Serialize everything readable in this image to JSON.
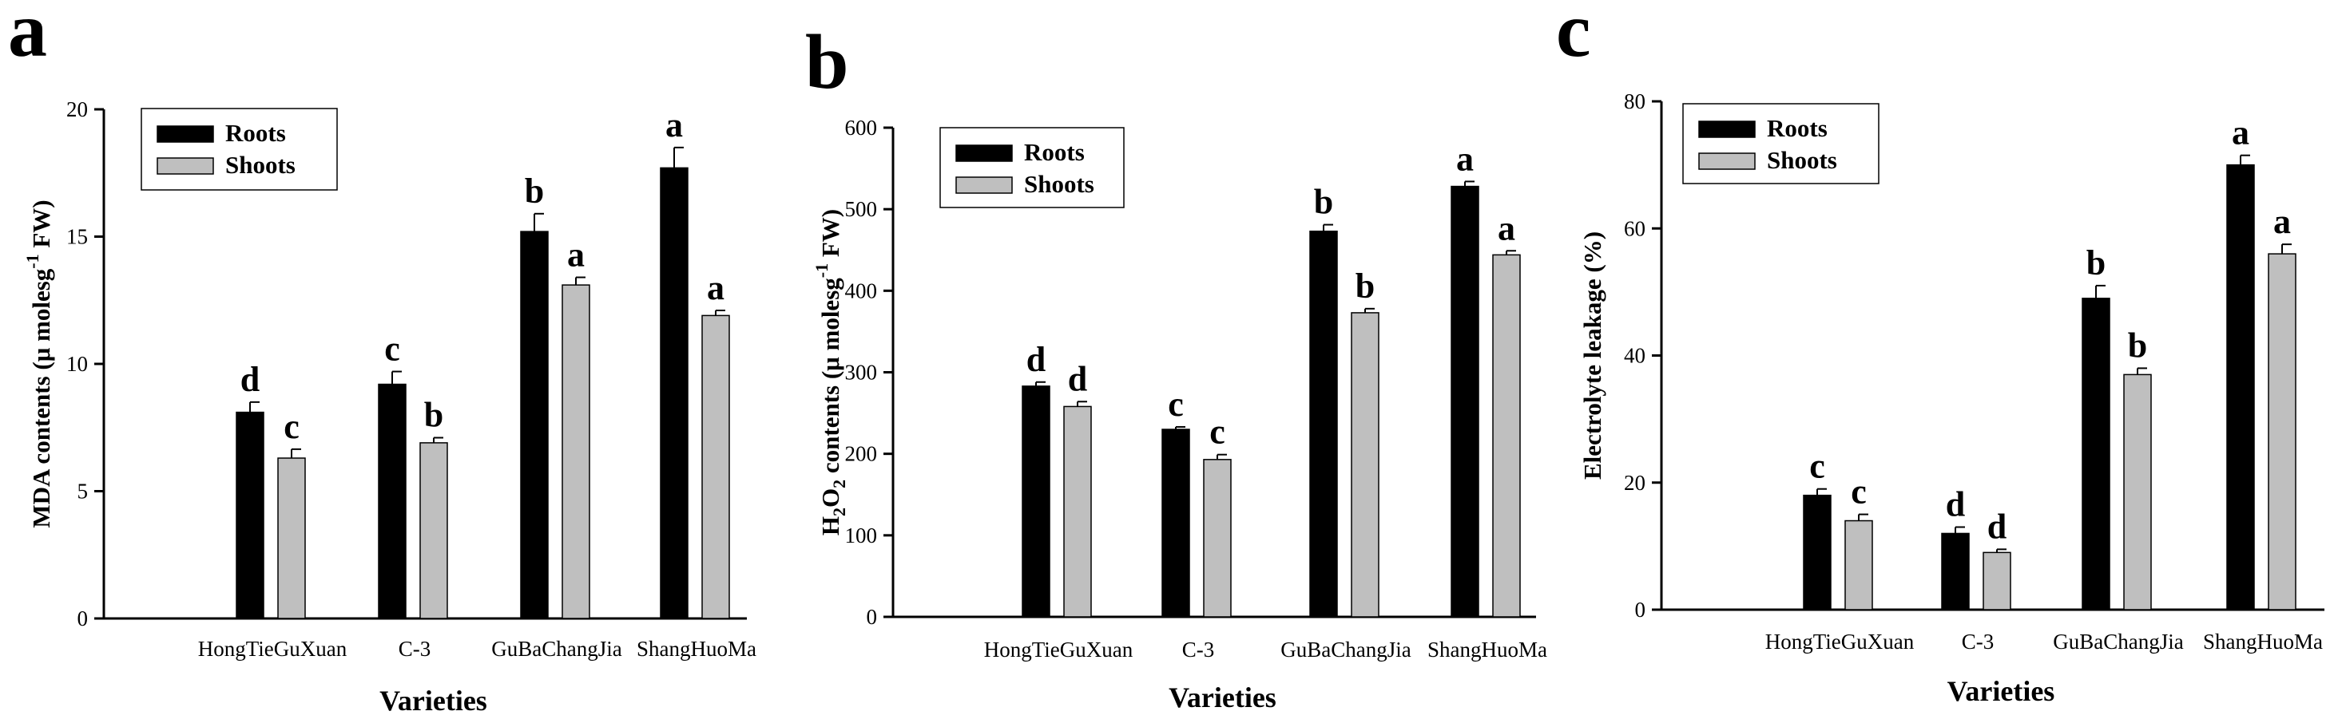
{
  "colors": {
    "roots": "#000000",
    "shoots": "#bfbfbf",
    "axis": "#000000"
  },
  "chart_data": [
    {
      "type": "bar",
      "panel": "a",
      "title": "",
      "xlabel": "Varieties",
      "ylabel": {
        "before": "MDA contents (μ molesg",
        "sup": "-1",
        "after": " FW)"
      },
      "categories": [
        "HongTieGuXuan",
        "C-3",
        "GuBaChangJia",
        "ShangHuoMa"
      ],
      "ylim": [
        0,
        20
      ],
      "yticks": [
        0,
        5,
        10,
        15,
        20
      ],
      "legend": {
        "position": "top-left",
        "entries": [
          "Roots",
          "Shoots"
        ]
      },
      "series": [
        {
          "name": "Roots",
          "values": [
            8.1,
            9.2,
            15.2,
            17.7
          ],
          "errors": [
            0.4,
            0.5,
            0.7,
            0.8
          ],
          "labels": [
            "d",
            "c",
            "b",
            "a"
          ]
        },
        {
          "name": "Shoots",
          "values": [
            6.3,
            6.9,
            13.1,
            11.9
          ],
          "errors": [
            0.35,
            0.2,
            0.3,
            0.2
          ],
          "labels": [
            "c",
            "b",
            "a",
            "a"
          ]
        }
      ]
    },
    {
      "type": "bar",
      "panel": "b",
      "title": "",
      "xlabel": "Varieties",
      "ylabel": {
        "before": "H",
        "sub": "2",
        "mid": "O",
        "sub2": "2",
        "after": " contents (μ molesg",
        "sup": "-1",
        "after2": " FW)"
      },
      "categories": [
        "HongTieGuXuan",
        "C-3",
        "GuBaChangJia",
        "ShangHuoMa"
      ],
      "ylim": [
        0,
        600
      ],
      "yticks": [
        0,
        100,
        200,
        300,
        400,
        500,
        600
      ],
      "legend": {
        "position": "top-left",
        "entries": [
          "Roots",
          "Shoots"
        ]
      },
      "series": [
        {
          "name": "Roots",
          "values": [
            283,
            230,
            473,
            528
          ],
          "errors": [
            5,
            3,
            8,
            6
          ],
          "labels": [
            "d",
            "c",
            "b",
            "a"
          ]
        },
        {
          "name": "Shoots",
          "values": [
            258,
            193,
            373,
            444
          ],
          "errors": [
            6,
            6,
            5,
            5
          ],
          "labels": [
            "d",
            "c",
            "b",
            "a"
          ]
        }
      ]
    },
    {
      "type": "bar",
      "panel": "c",
      "title": "",
      "xlabel": "Varieties",
      "ylabel": {
        "before": "Electrolyte leakage (%)"
      },
      "categories": [
        "HongTieGuXuan",
        "C-3",
        "GuBaChangJia",
        "ShangHuoMa"
      ],
      "ylim": [
        0,
        80
      ],
      "yticks": [
        0,
        20,
        40,
        60,
        80
      ],
      "legend": {
        "position": "top-left",
        "entries": [
          "Roots",
          "Shoots"
        ]
      },
      "series": [
        {
          "name": "Roots",
          "values": [
            18,
            12,
            49,
            70
          ],
          "errors": [
            1.0,
            1.0,
            2.0,
            1.5
          ],
          "labels": [
            "c",
            "d",
            "b",
            "a"
          ]
        },
        {
          "name": "Shoots",
          "values": [
            14,
            9,
            37,
            56
          ],
          "errors": [
            1.0,
            0.5,
            1.0,
            1.5
          ],
          "labels": [
            "c",
            "d",
            "b",
            "a"
          ]
        }
      ]
    }
  ]
}
